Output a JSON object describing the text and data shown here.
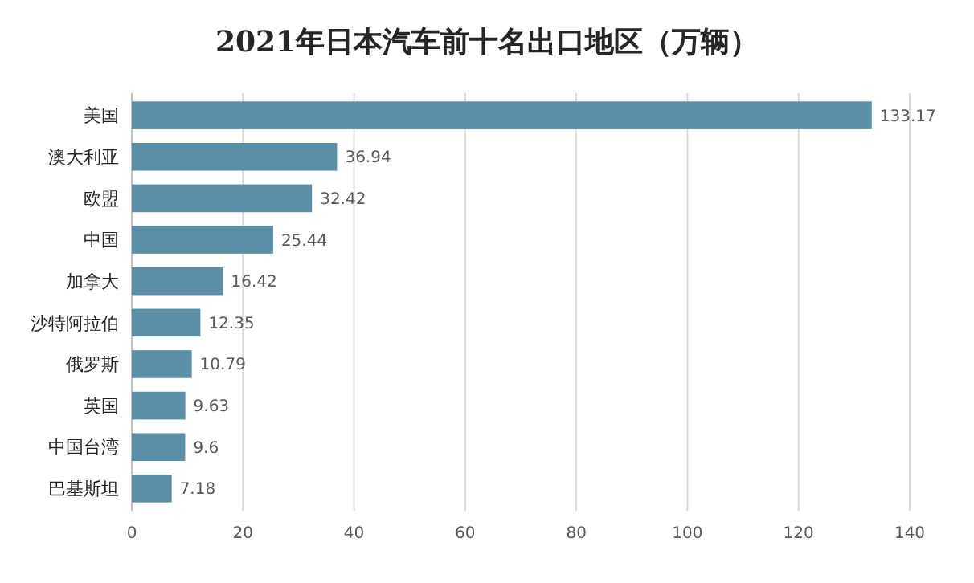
{
  "chart_data": {
    "type": "bar",
    "orientation": "horizontal",
    "title": "2021年日本汽车前十名出口地区（万辆）",
    "categories": [
      "美国",
      "澳大利亚",
      "欧盟",
      "中国",
      "加拿大",
      "沙特阿拉伯",
      "俄罗斯",
      "英国",
      "中国台湾",
      "巴基斯坦"
    ],
    "values": [
      133.17,
      36.94,
      32.42,
      25.44,
      16.42,
      12.35,
      10.79,
      9.63,
      9.6,
      7.18
    ],
    "color": "#5b8fa8",
    "xlim": [
      0,
      140
    ],
    "xticks": [
      0,
      20,
      40,
      60,
      80,
      100,
      120,
      140
    ],
    "grid": "x",
    "data_labels": true
  }
}
